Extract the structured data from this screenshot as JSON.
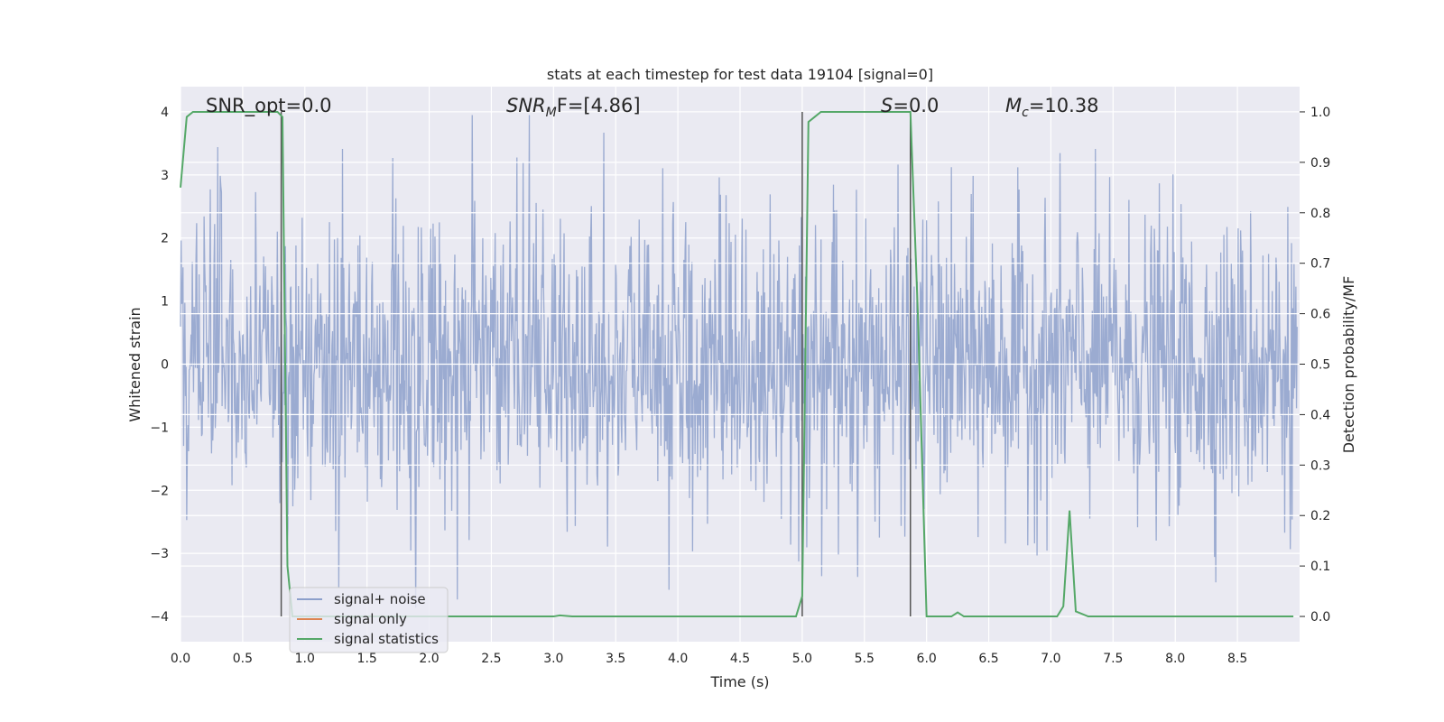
{
  "chart_data": {
    "type": "line",
    "title": "stats at each timestep for test data 19104 [signal=0]",
    "xlabel": "Time (s)",
    "ylabel": "Whitened strain",
    "y2label": "Detection probability/MF",
    "xlim": [
      0.0,
      9.0
    ],
    "ylim": [
      -4.4,
      4.4
    ],
    "y2lim": [
      -0.05,
      1.05
    ],
    "xticks": [
      "0.0",
      "0.5",
      "1.0",
      "1.5",
      "2.0",
      "2.5",
      "3.0",
      "3.5",
      "4.0",
      "4.5",
      "5.0",
      "5.5",
      "6.0",
      "6.5",
      "7.0",
      "7.5",
      "8.0",
      "8.5"
    ],
    "yticks": [
      "−4",
      "−3",
      "−2",
      "−1",
      "0",
      "1",
      "2",
      "3",
      "4"
    ],
    "y2ticks": [
      "0.0",
      "0.1",
      "0.2",
      "0.3",
      "0.4",
      "0.5",
      "0.6",
      "0.7",
      "0.8",
      "0.9",
      "1.0"
    ],
    "grid": true,
    "legend_position": "lower-left",
    "annotations": {
      "snr_opt": "SNR_opt=0.0",
      "snr_mf_label": "SNR",
      "snr_mf_sub": "M",
      "snr_mf_rest": "F=[4.86]",
      "s_label": "S",
      "s_rest": "=0.0",
      "mc_label": "M",
      "mc_sub": "c",
      "mc_rest": "=10.38"
    },
    "vertical_markers": [
      0.81,
      5.0,
      5.87
    ],
    "series": [
      {
        "name": "signal+ noise",
        "color": "#8da0cb",
        "description_type": "whitened strain noise, roughly Gaussian, extremes near ±4"
      },
      {
        "name": "signal only",
        "color": "#dd8452",
        "values": []
      },
      {
        "name": "signal statistics",
        "color": "#55a868",
        "axis": "right",
        "x": [
          0.0,
          0.05,
          0.1,
          0.15,
          0.2,
          0.3,
          0.4,
          0.5,
          0.6,
          0.7,
          0.78,
          0.82,
          0.86,
          0.9,
          1.0,
          1.5,
          2.0,
          2.5,
          3.0,
          3.05,
          3.15,
          3.5,
          4.0,
          4.5,
          4.95,
          5.0,
          5.05,
          5.1,
          5.15,
          5.3,
          5.5,
          5.7,
          5.87,
          5.93,
          6.0,
          6.2,
          6.25,
          6.3,
          6.5,
          7.0,
          7.05,
          7.1,
          7.15,
          7.2,
          7.3,
          7.5,
          8.0,
          8.5,
          8.95
        ],
        "values": [
          0.85,
          0.99,
          1.0,
          1.0,
          1.0,
          1.0,
          1.0,
          1.0,
          1.0,
          1.0,
          1.0,
          0.99,
          0.1,
          0.0,
          0.0,
          0.0,
          0.0,
          0.0,
          0.0,
          0.002,
          0.0,
          0.0,
          0.0,
          0.0,
          0.0,
          0.04,
          0.98,
          0.99,
          1.0,
          1.0,
          1.0,
          1.0,
          1.0,
          0.6,
          0.0,
          0.0,
          0.008,
          0.0,
          0.0,
          0.0,
          0.0,
          0.02,
          0.21,
          0.01,
          0.0,
          0.0,
          0.0,
          0.0,
          0.0
        ]
      }
    ]
  }
}
